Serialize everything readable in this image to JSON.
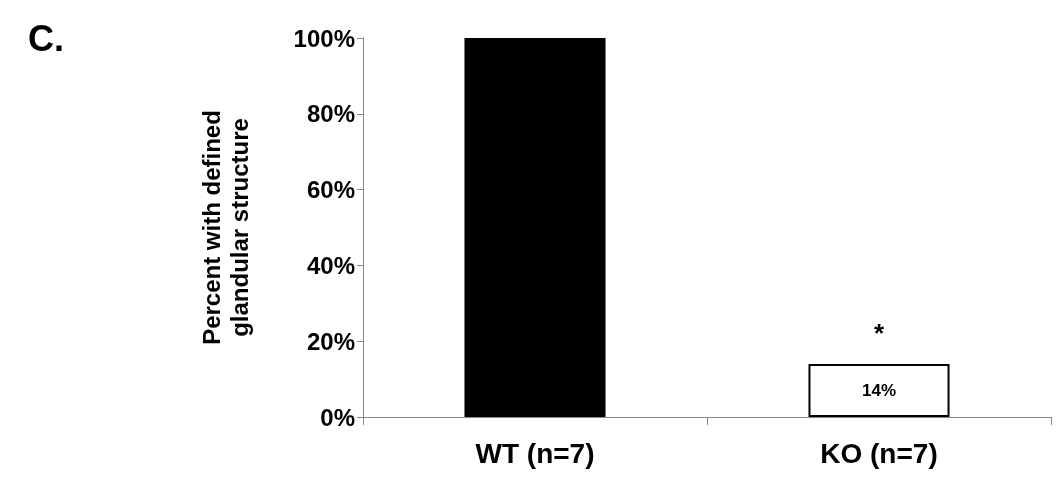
{
  "chart_data": {
    "type": "bar",
    "ylabel": "Percent with defined glandular structure",
    "categories": [
      "WT (n=7)",
      "KO (n=7)"
    ],
    "values": [
      100,
      14
    ],
    "colors": [
      "#000000",
      "#ffffff"
    ],
    "value_labels": [
      null,
      "14%"
    ],
    "ylim": [
      0,
      100
    ],
    "yticks": [
      {
        "value": 0,
        "label": "0%"
      },
      {
        "value": 20,
        "label": "20%"
      },
      {
        "value": 40,
        "label": "40%"
      },
      {
        "value": 60,
        "label": "60%"
      },
      {
        "value": 80,
        "label": "80%"
      },
      {
        "value": 100,
        "label": "100%"
      }
    ],
    "grid": false,
    "annotations": [
      "C.",
      {
        "text": "*",
        "x": "KO (n=7)",
        "y": 14
      }
    ]
  }
}
